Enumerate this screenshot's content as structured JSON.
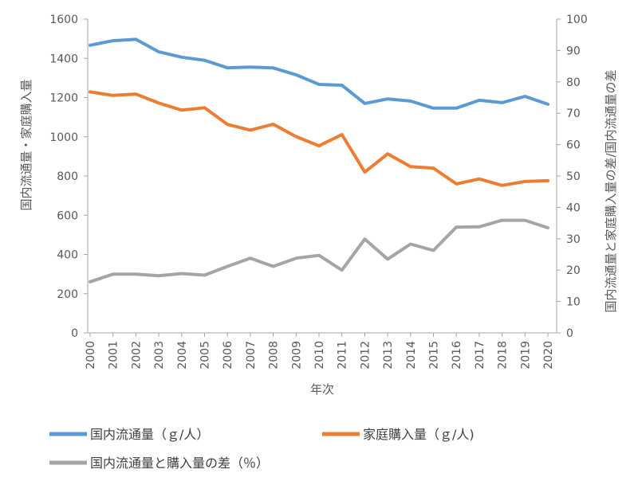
{
  "chart_data": {
    "type": "line",
    "xlabel": "年次",
    "ylabel_left": "国内流通量・家庭購入量",
    "ylabel_right": "国内流通量と家庭購入量の差/国内流通量の差",
    "ylim_left": [
      0,
      1600
    ],
    "ylim_right": [
      0,
      100
    ],
    "yticks_left": [
      "0",
      "200",
      "400",
      "600",
      "800",
      "1000",
      "1200",
      "1400",
      "1600"
    ],
    "yticks_right": [
      "0",
      "10",
      "20",
      "30",
      "40",
      "50",
      "60",
      "70",
      "80",
      "90",
      "100"
    ],
    "x": [
      "2000",
      "2001",
      "2002",
      "2003",
      "2004",
      "2005",
      "2006",
      "2007",
      "2008",
      "2009",
      "2010",
      "2011",
      "2012",
      "2013",
      "2014",
      "2015",
      "2016",
      "2017",
      "2018",
      "2019",
      "2020"
    ],
    "grid": false,
    "legend_position": "bottom",
    "series": [
      {
        "name": "国内流通量（ｇ/人）",
        "axis": "left",
        "color": "#5b9bd5",
        "values": [
          1467,
          1490,
          1497,
          1433,
          1406,
          1390,
          1352,
          1355,
          1351,
          1316,
          1267,
          1263,
          1170,
          1193,
          1182,
          1146,
          1146,
          1186,
          1174,
          1206,
          1166
        ]
      },
      {
        "name": "家庭購入量（ｇ/人)",
        "axis": "left",
        "color": "#ed7d31",
        "values": [
          1229,
          1211,
          1218,
          1172,
          1136,
          1148,
          1063,
          1034,
          1064,
          1001,
          954,
          1011,
          820,
          913,
          848,
          840,
          760,
          785,
          752,
          772,
          776
        ]
      },
      {
        "name": "国内流通量と購入量の差（％）",
        "axis": "right",
        "color": "#a5a5a5",
        "values": [
          16.3,
          18.7,
          18.7,
          18.2,
          18.9,
          18.4,
          21.2,
          23.8,
          21.2,
          23.8,
          24.7,
          20.0,
          29.9,
          23.5,
          28.3,
          26.3,
          33.7,
          33.8,
          35.9,
          35.9,
          33.5
        ]
      }
    ]
  }
}
